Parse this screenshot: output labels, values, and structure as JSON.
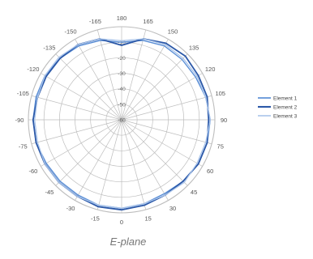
{
  "chart_data": {
    "type": "polar-line",
    "title": "E-plane",
    "angle_ticks": [
      180,
      165,
      150,
      135,
      120,
      105,
      90,
      75,
      60,
      45,
      30,
      15,
      0,
      -15,
      -30,
      -45,
      -60,
      -75,
      -90,
      -105,
      -120,
      -135,
      -150,
      -165
    ],
    "radial_ticks": [
      -10,
      -20,
      -30,
      -40,
      -50,
      -60
    ],
    "radial_range": [
      -60,
      0
    ],
    "grid": true,
    "legend_position": "right",
    "colors": {
      "grid": "#bdbdbd",
      "element1": "#5b8fd6",
      "element2": "#2b58a8",
      "element3": "#a9c4ea"
    },
    "angles": [
      0,
      15,
      30,
      45,
      60,
      75,
      90,
      105,
      120,
      135,
      150,
      165,
      180,
      -165,
      -150,
      -135,
      -120,
      -105,
      -90,
      -75,
      -60,
      -45,
      -30,
      -15
    ],
    "series": [
      {
        "name": "Element 1",
        "values": [
          -3,
          -4,
          -5,
          -4,
          -3,
          -3,
          -3,
          -4,
          -5,
          -5,
          -5,
          -7,
          -10,
          -7,
          -5,
          -4,
          -3,
          -3,
          -3,
          -3,
          -4,
          -4,
          -4,
          -3
        ]
      },
      {
        "name": "Element 2",
        "values": [
          -2,
          -3,
          -4,
          -4,
          -3,
          -3,
          -4,
          -3,
          -3,
          -2,
          -3,
          -6,
          -12,
          -6,
          -4,
          -4,
          -4,
          -4,
          -3,
          -3,
          -3,
          -3,
          -3,
          -2
        ]
      },
      {
        "name": "Element 3",
        "values": [
          -3,
          -4,
          -4,
          -3,
          -4,
          -4,
          -3,
          -4,
          -4,
          -4,
          -4,
          -6,
          -9,
          -6,
          -4,
          -3,
          -3,
          -4,
          -4,
          -4,
          -3,
          -3,
          -3,
          -3
        ]
      }
    ]
  }
}
